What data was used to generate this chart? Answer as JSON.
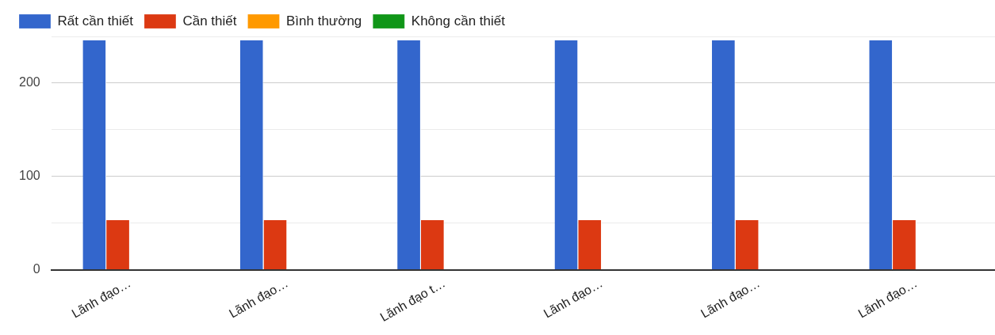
{
  "chart_data": {
    "type": "bar",
    "categories": [
      "Lãnh đạo…",
      "Lãnh đạo…",
      "Lãnh đạo t…",
      "Lãnh đạo…",
      "Lãnh đạo…",
      "Lãnh đạo…"
    ],
    "series": [
      {
        "name": "Rất cần thiết",
        "color": "#3366cc",
        "values": [
          246,
          246,
          246,
          246,
          246,
          246
        ]
      },
      {
        "name": "Cần thiết",
        "color": "#dc3912",
        "values": [
          53,
          53,
          53,
          53,
          53,
          53
        ]
      },
      {
        "name": "Bình thường",
        "color": "#ff9900",
        "values": [
          0,
          0,
          0,
          0,
          0,
          0
        ]
      },
      {
        "name": "Không cần thiết",
        "color": "#109618",
        "values": [
          0,
          0,
          0,
          0,
          0,
          0
        ]
      }
    ],
    "ylim": [
      0,
      250
    ],
    "yticks": [
      0,
      {
        "value": 50,
        "label": null
      },
      100,
      {
        "value": 150,
        "label": null
      },
      200,
      {
        "value": 250,
        "label": null
      }
    ],
    "grid": "y",
    "legend": "top left"
  }
}
